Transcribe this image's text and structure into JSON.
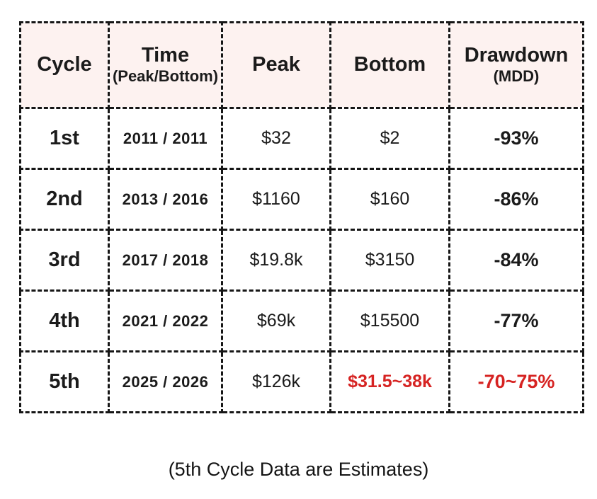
{
  "chart_data": {
    "type": "table",
    "columns": [
      "Cycle",
      "Time (Peak/Bottom)",
      "Peak",
      "Bottom",
      "Drawdown (MDD)"
    ],
    "rows": [
      [
        "1st",
        "2011 / 2011",
        "$32",
        "$2",
        "-93%"
      ],
      [
        "2nd",
        "2013 / 2016",
        "$1160",
        "$160",
        "-86%"
      ],
      [
        "3rd",
        "2017 / 2018",
        "$19.8k",
        "$3150",
        "-84%"
      ],
      [
        "4th",
        "2021 / 2022",
        "$69k",
        "$15500",
        "-77%"
      ],
      [
        "5th",
        "2025 / 2026",
        "$126k",
        "$31.5~38k",
        "-70~75%"
      ]
    ],
    "title": "",
    "notes": "(5th Cycle Data are Estimates)",
    "highlighted_estimate_cells": [
      "row 5 Bottom: $31.5~38k",
      "row 5 Drawdown: -70~75%"
    ]
  },
  "table": {
    "headers": [
      {
        "main": "Cycle",
        "sub": ""
      },
      {
        "main": "Time",
        "sub": "(Peak/Bottom)"
      },
      {
        "main": "Peak",
        "sub": ""
      },
      {
        "main": "Bottom",
        "sub": ""
      },
      {
        "main": "Drawdown",
        "sub": "(MDD)"
      }
    ],
    "rows": [
      {
        "cycle": "1st",
        "time": "2011 / 2011",
        "peak": "$32",
        "bottom": "$2",
        "drawdown": "-93%"
      },
      {
        "cycle": "2nd",
        "time": "2013 / 2016",
        "peak": "$1160",
        "bottom": "$160",
        "drawdown": "-86%"
      },
      {
        "cycle": "3rd",
        "time": "2017 / 2018",
        "peak": "$19.8k",
        "bottom": "$3150",
        "drawdown": "-84%"
      },
      {
        "cycle": "4th",
        "time": "2021 / 2022",
        "peak": "$69k",
        "bottom": "$15500",
        "drawdown": "-77%"
      },
      {
        "cycle": "5th",
        "time": "2025 / 2026",
        "peak": "$126k",
        "bottom": "$31.5~38k",
        "drawdown": "-70~75%"
      }
    ]
  },
  "caption": "(5th Cycle Data are Estimates)",
  "colors": {
    "page_background": "#ffffff",
    "header_background": "#fdf2f0",
    "text_black": "#1b1b1b",
    "border_black": "#161616",
    "estimate_red": "#d62322"
  }
}
